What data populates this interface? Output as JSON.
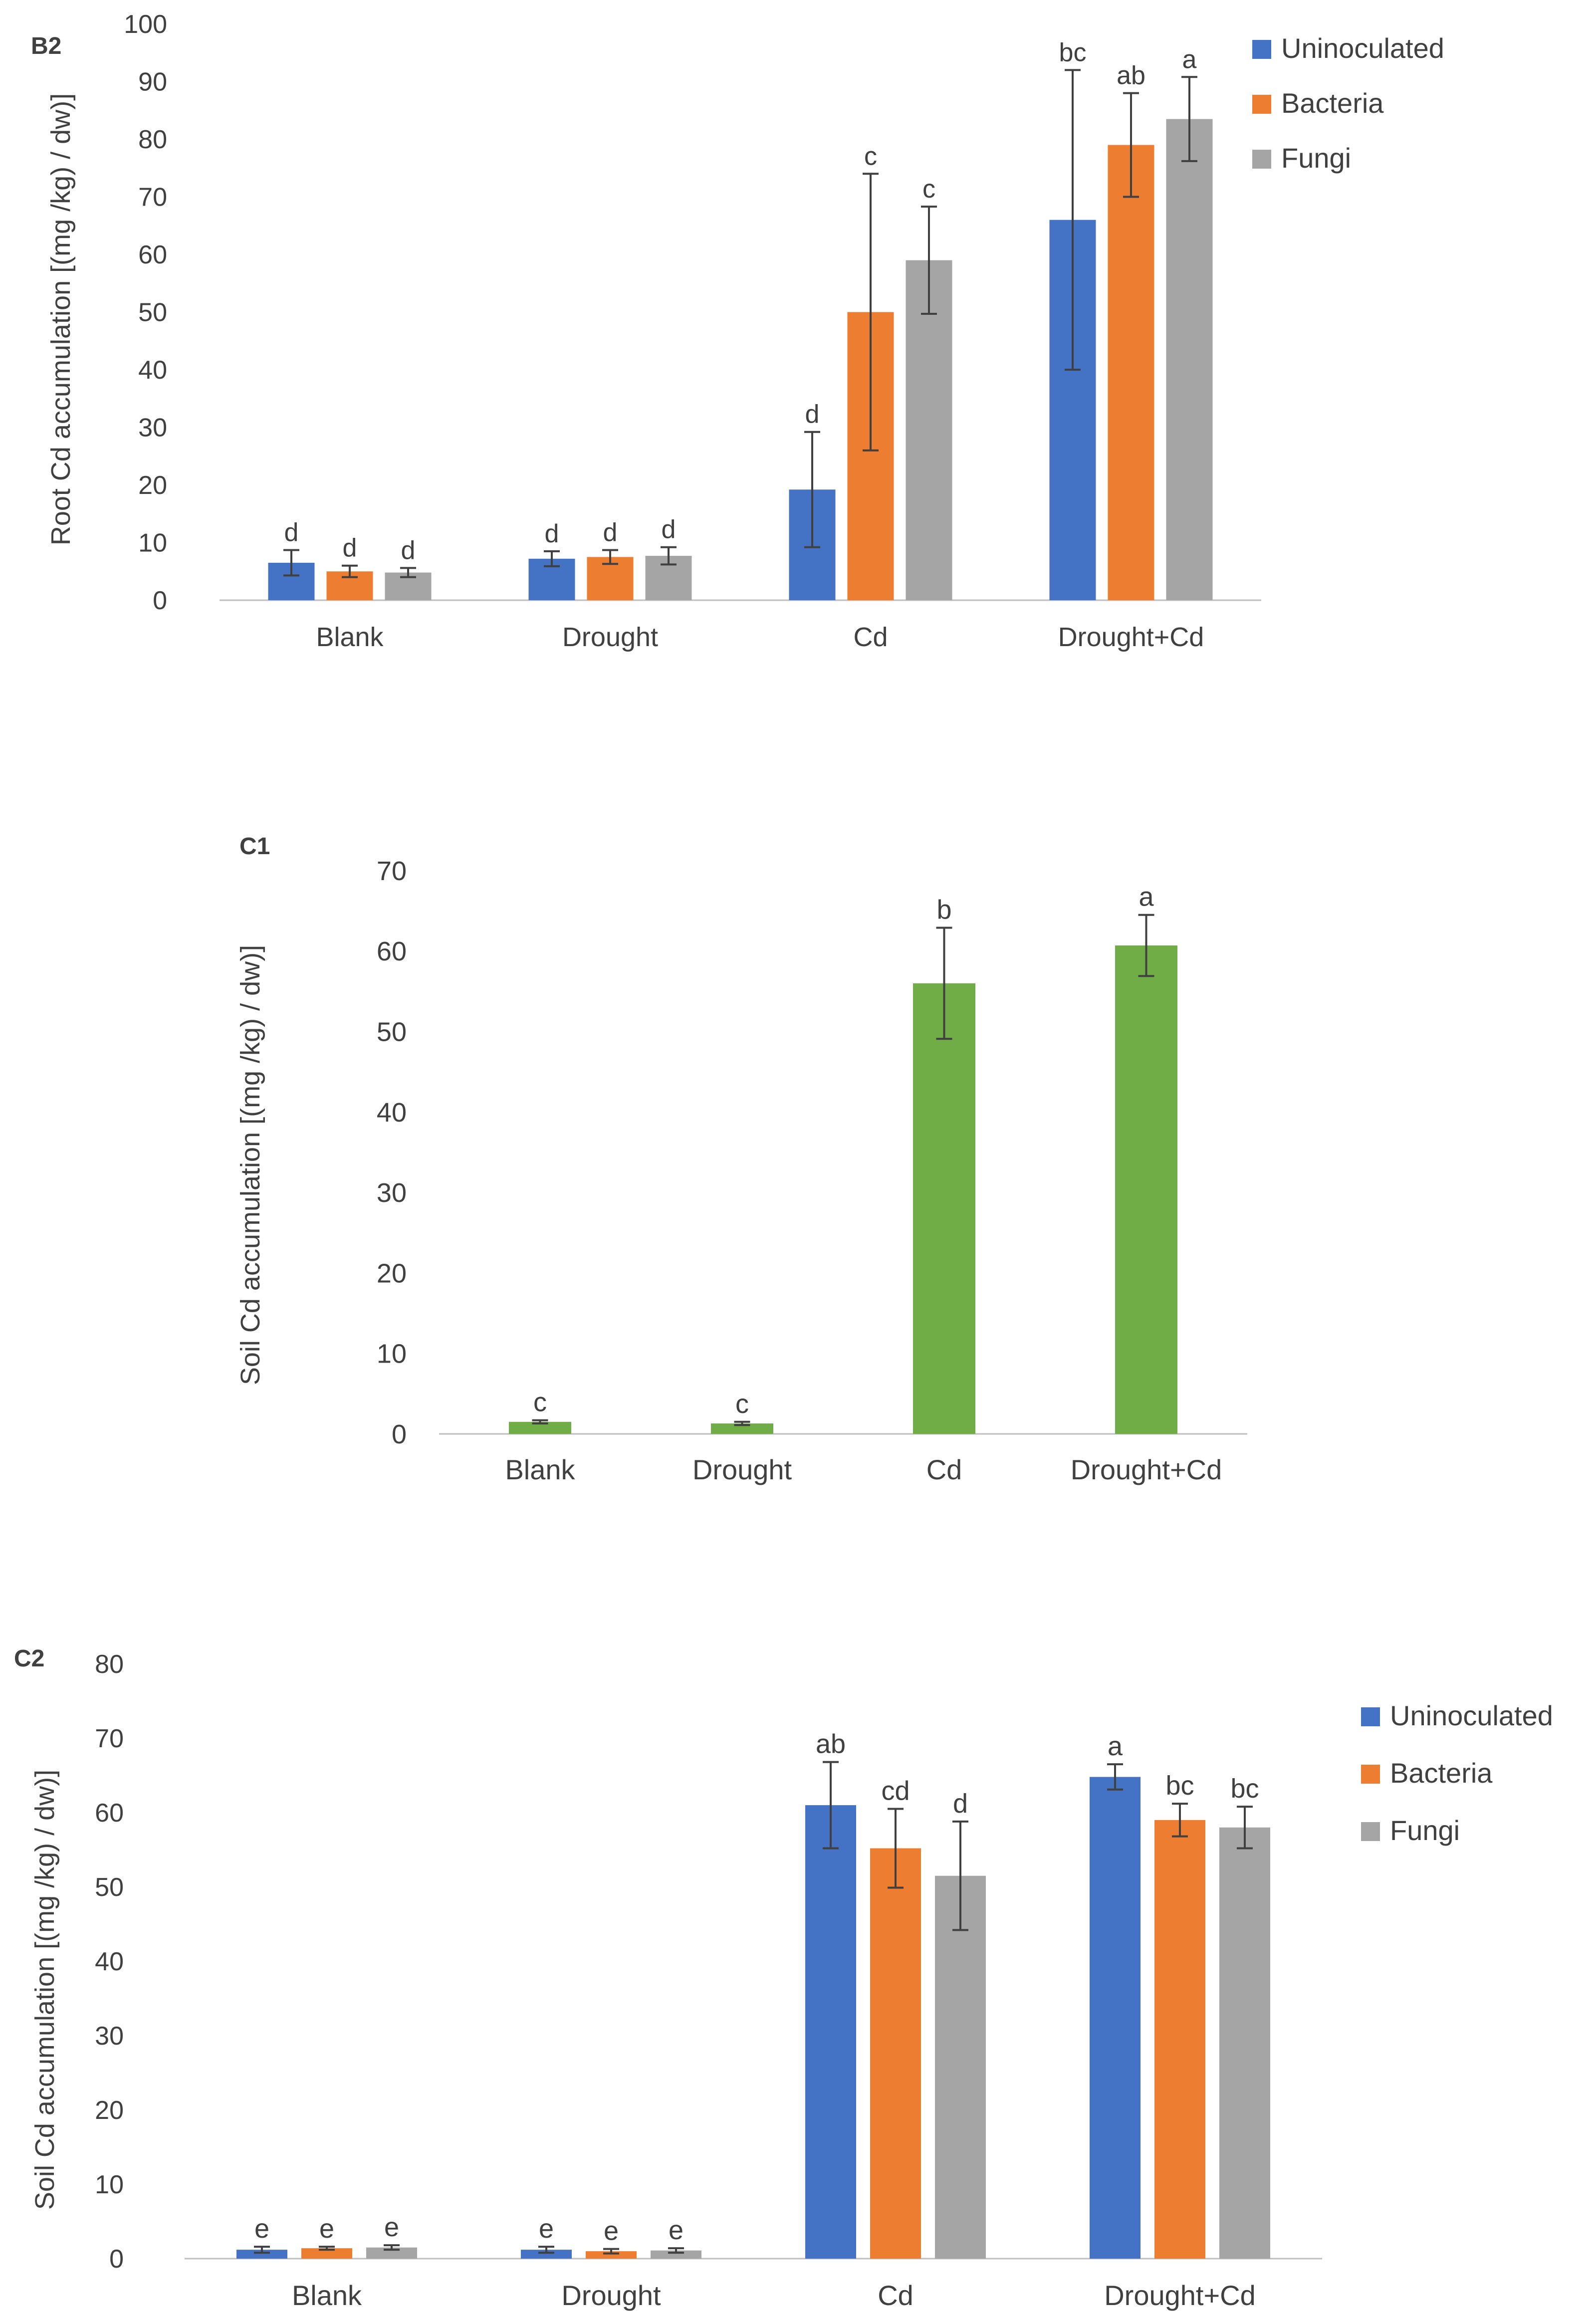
{
  "colors": {
    "uninoculated": "#4472C4",
    "bacteria": "#ED7D31",
    "fungi": "#A5A5A5",
    "soil": "#70AD47",
    "axis": "#BFBFBF",
    "text": "#404040",
    "error_bar": "#404040"
  },
  "chart_data": [
    {
      "panel_label": "B2",
      "type": "bar",
      "ylabel": "Root Cd accumulation [(mg /kg) / dw)]",
      "ylim": [
        0,
        100
      ],
      "yticks": [
        0,
        10,
        20,
        30,
        40,
        50,
        60,
        70,
        80,
        90,
        100
      ],
      "grid": false,
      "legend_position": "top-right",
      "categories": [
        "Blank",
        "Drought",
        "Cd",
        "Drought+Cd"
      ],
      "series": [
        {
          "name": "Uninoculated",
          "color_key": "uninoculated",
          "values": [
            6.5,
            7.2,
            19.2,
            66.0
          ],
          "errors": [
            2.2,
            1.3,
            10.0,
            26.0
          ],
          "letters": [
            "d",
            "d",
            "d",
            "bc"
          ]
        },
        {
          "name": "Bacteria",
          "color_key": "bacteria",
          "values": [
            5.0,
            7.5,
            50.0,
            79.0
          ],
          "errors": [
            1.0,
            1.2,
            24.0,
            9.0
          ],
          "letters": [
            "d",
            "d",
            "c",
            "ab"
          ]
        },
        {
          "name": "Fungi",
          "color_key": "fungi",
          "values": [
            4.8,
            7.7,
            59.0,
            83.5
          ],
          "errors": [
            0.8,
            1.5,
            9.3,
            7.3
          ],
          "letters": [
            "d",
            "d",
            "c",
            "a"
          ]
        }
      ]
    },
    {
      "panel_label": "C1",
      "type": "bar",
      "ylabel": "Soil Cd accumulation [(mg /kg) / dw)]",
      "ylim": [
        0,
        70
      ],
      "yticks": [
        0,
        10,
        20,
        30,
        40,
        50,
        60,
        70
      ],
      "grid": false,
      "legend_position": "none",
      "categories": [
        "Blank",
        "Drought",
        "Cd",
        "Drought+Cd"
      ],
      "series": [
        {
          "name": "Soil",
          "color_key": "soil",
          "values": [
            1.5,
            1.3,
            56.0,
            60.7
          ],
          "errors": [
            0.2,
            0.2,
            6.9,
            3.8
          ],
          "letters": [
            "c",
            "c",
            "b",
            "a"
          ]
        }
      ]
    },
    {
      "panel_label": "C2",
      "type": "bar",
      "ylabel": "Soil Cd accumulation [(mg /kg) / dw)]",
      "ylim": [
        0,
        80
      ],
      "yticks": [
        0,
        10,
        20,
        30,
        40,
        50,
        60,
        70,
        80
      ],
      "grid": false,
      "legend_position": "top-right",
      "categories": [
        "Blank",
        "Drought",
        "Cd",
        "Drought+Cd"
      ],
      "series": [
        {
          "name": "Uninoculated",
          "color_key": "uninoculated",
          "values": [
            1.2,
            1.2,
            61.0,
            64.8
          ],
          "errors": [
            0.4,
            0.4,
            5.8,
            1.7
          ],
          "letters": [
            "e",
            "e",
            "ab",
            "a"
          ]
        },
        {
          "name": "Bacteria",
          "color_key": "bacteria",
          "values": [
            1.4,
            1.0,
            55.2,
            59.0
          ],
          "errors": [
            0.2,
            0.3,
            5.3,
            2.2
          ],
          "letters": [
            "e",
            "e",
            "cd",
            "bc"
          ]
        },
        {
          "name": "Fungi",
          "color_key": "fungi",
          "values": [
            1.5,
            1.1,
            51.5,
            58.0
          ],
          "errors": [
            0.3,
            0.3,
            7.3,
            2.8
          ],
          "letters": [
            "e",
            "e",
            "d",
            "bc"
          ]
        }
      ]
    }
  ]
}
